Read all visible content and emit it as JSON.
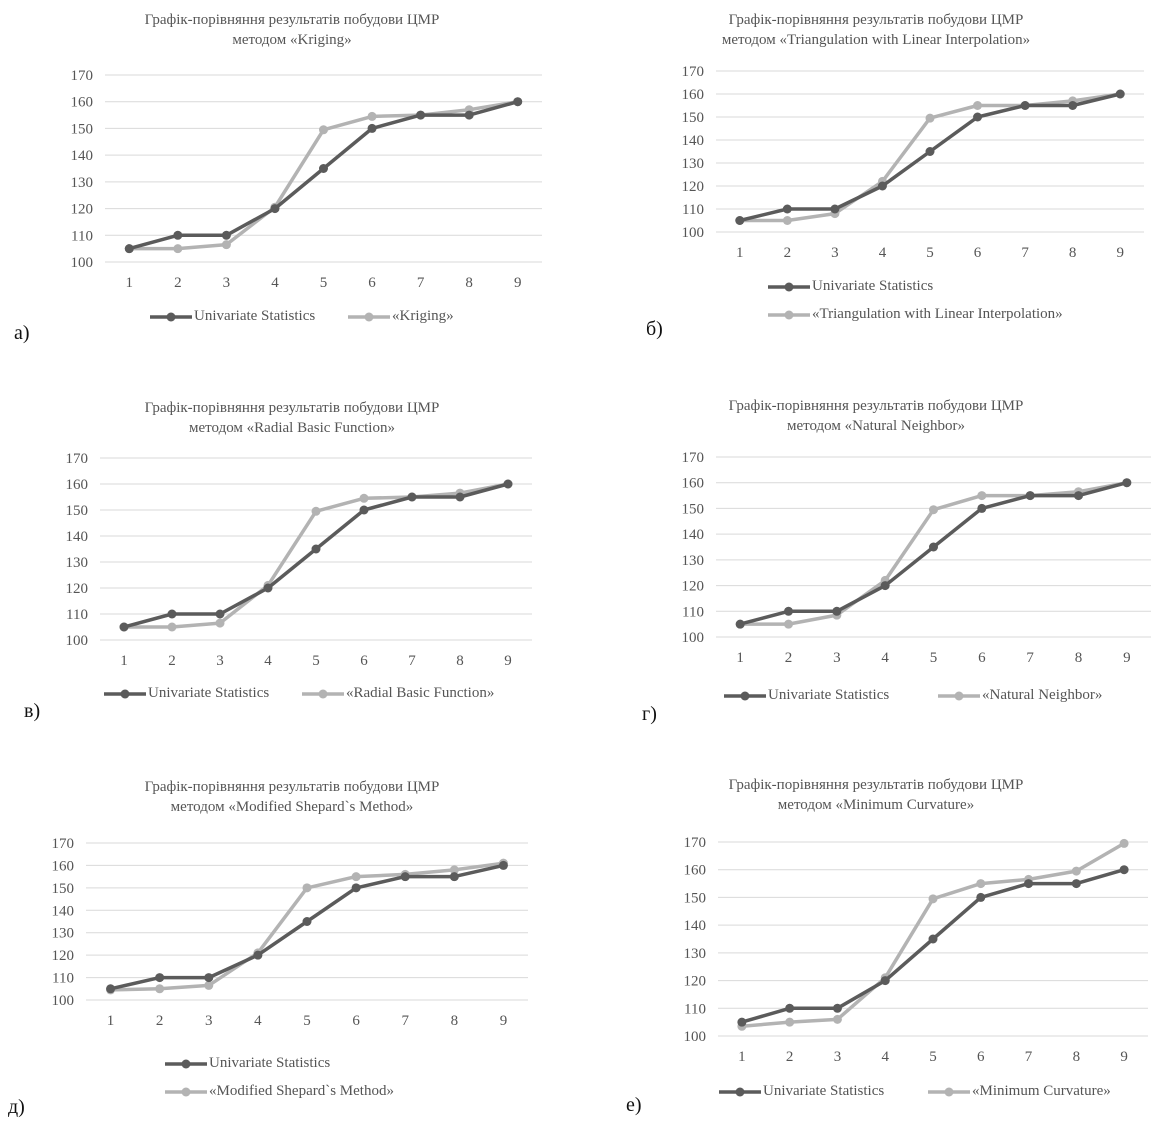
{
  "chart_data": [
    {
      "type": "line",
      "panel_label": "а)",
      "title": "Графік-порівняння результатів побудови ЦМР методом «Kriging»",
      "title_lines": [
        "Графік-порівняння результатів побудови ЦМР",
        "методом «Kriging»"
      ],
      "categories": [
        "1",
        "2",
        "3",
        "4",
        "5",
        "6",
        "7",
        "8",
        "9"
      ],
      "y_ticks": [
        "100",
        "110",
        "120",
        "130",
        "140",
        "150",
        "160",
        "170"
      ],
      "ylim": [
        100,
        170
      ],
      "grid": true,
      "legend_position": "bottom",
      "series": [
        {
          "name": "Univariate Statistics",
          "color": "#5b5b5b",
          "values": [
            105,
            110,
            110,
            120,
            135,
            150,
            155,
            155,
            160
          ]
        },
        {
          "name": "«Kriging»",
          "color": "#b3b3b3",
          "values": [
            105,
            105,
            106.5,
            120.5,
            149.5,
            154.5,
            155,
            157,
            160
          ]
        }
      ]
    },
    {
      "type": "line",
      "panel_label": "б)",
      "title": "Графік-порівняння результатів побудови ЦМР методом «Triangulation with Linear Interpolation»",
      "title_lines": [
        "Графік-порівняння результатів побудови ЦМР",
        "методом «Triangulation with Linear Interpolation»"
      ],
      "categories": [
        "1",
        "2",
        "3",
        "4",
        "5",
        "6",
        "7",
        "8",
        "9"
      ],
      "y_ticks": [
        "100",
        "110",
        "120",
        "130",
        "140",
        "150",
        "160",
        "170"
      ],
      "ylim": [
        100,
        170
      ],
      "grid": true,
      "legend_position": "bottom",
      "series": [
        {
          "name": "Univariate Statistics",
          "color": "#5b5b5b",
          "values": [
            105,
            110,
            110,
            120,
            135,
            150,
            155,
            155,
            160
          ]
        },
        {
          "name": "«Triangulation with Linear Interpolation»",
          "color": "#b3b3b3",
          "values": [
            105,
            105,
            108,
            122,
            149.5,
            155,
            155,
            157,
            160
          ]
        }
      ]
    },
    {
      "type": "line",
      "panel_label": "в)",
      "title": "Графік-порівняння результатів побудови ЦМР методом «Radial Basic Function»",
      "title_lines": [
        "Графік-порівняння результатів побудови ЦМР",
        "методом «Radial Basic Function»"
      ],
      "categories": [
        "1",
        "2",
        "3",
        "4",
        "5",
        "6",
        "7",
        "8",
        "9"
      ],
      "y_ticks": [
        "100",
        "110",
        "120",
        "130",
        "140",
        "150",
        "160",
        "170"
      ],
      "ylim": [
        100,
        170
      ],
      "grid": true,
      "legend_position": "bottom",
      "series": [
        {
          "name": "Univariate Statistics",
          "color": "#5b5b5b",
          "values": [
            105,
            110,
            110,
            120,
            135,
            150,
            155,
            155,
            160
          ]
        },
        {
          "name": "«Radial Basic Function»",
          "color": "#b3b3b3",
          "values": [
            105,
            105,
            106.5,
            121,
            149.5,
            154.5,
            155,
            156.5,
            160
          ]
        }
      ]
    },
    {
      "type": "line",
      "panel_label": "г)",
      "title": "Графік-порівняння результатів побудови ЦМР методом «Natural Neighbor»",
      "title_lines": [
        "Графік-порівняння результатів побудови ЦМР",
        "методом «Natural Neighbor»"
      ],
      "categories": [
        "1",
        "2",
        "3",
        "4",
        "5",
        "6",
        "7",
        "8",
        "9"
      ],
      "y_ticks": [
        "100",
        "110",
        "120",
        "130",
        "140",
        "150",
        "160",
        "170"
      ],
      "ylim": [
        100,
        170
      ],
      "grid": true,
      "legend_position": "bottom",
      "series": [
        {
          "name": "Univariate Statistics",
          "color": "#5b5b5b",
          "values": [
            105,
            110,
            110,
            120,
            135,
            150,
            155,
            155,
            160
          ]
        },
        {
          "name": "«Natural Neighbor»",
          "color": "#b3b3b3",
          "values": [
            105,
            105,
            108.5,
            122,
            149.5,
            155,
            155,
            156.5,
            160
          ]
        }
      ]
    },
    {
      "type": "line",
      "panel_label": "д)",
      "title": "Графік-порівняння результатів побудови ЦМР методом «Modified Shepard`s Method»",
      "title_lines": [
        "Графік-порівняння результатів побудови ЦМР",
        "методом «Modified Shepard`s Method»"
      ],
      "categories": [
        "1",
        "2",
        "3",
        "4",
        "5",
        "6",
        "7",
        "8",
        "9"
      ],
      "y_ticks": [
        "100",
        "110",
        "120",
        "130",
        "140",
        "150",
        "160",
        "170"
      ],
      "ylim": [
        100,
        170
      ],
      "grid": true,
      "legend_position": "bottom",
      "series": [
        {
          "name": "Univariate Statistics",
          "color": "#5b5b5b",
          "values": [
            105,
            110,
            110,
            120,
            135,
            150,
            155,
            155,
            160
          ]
        },
        {
          "name": "«Modified Shepard`s Method»",
          "color": "#b3b3b3",
          "values": [
            104.5,
            105,
            106.5,
            121,
            150,
            155,
            156,
            158,
            161
          ]
        }
      ]
    },
    {
      "type": "line",
      "panel_label": "е)",
      "title": "Графік-порівняння результатів побудови ЦМР методом «Minimum Curvature»",
      "title_lines": [
        "Графік-порівняння результатів побудови ЦМР",
        "методом «Minimum Curvature»"
      ],
      "categories": [
        "1",
        "2",
        "3",
        "4",
        "5",
        "6",
        "7",
        "8",
        "9"
      ],
      "y_ticks": [
        "100",
        "110",
        "120",
        "130",
        "140",
        "150",
        "160",
        "170"
      ],
      "ylim": [
        100,
        170
      ],
      "grid": true,
      "legend_position": "bottom",
      "series": [
        {
          "name": "Univariate Statistics",
          "color": "#5b5b5b",
          "values": [
            105,
            110,
            110,
            120,
            135,
            150,
            155,
            155,
            160
          ]
        },
        {
          "name": "«Minimum Curvature»",
          "color": "#b3b3b3",
          "values": [
            103.5,
            105,
            106,
            121,
            149.5,
            155,
            156.5,
            159.5,
            169.5
          ]
        }
      ]
    }
  ]
}
